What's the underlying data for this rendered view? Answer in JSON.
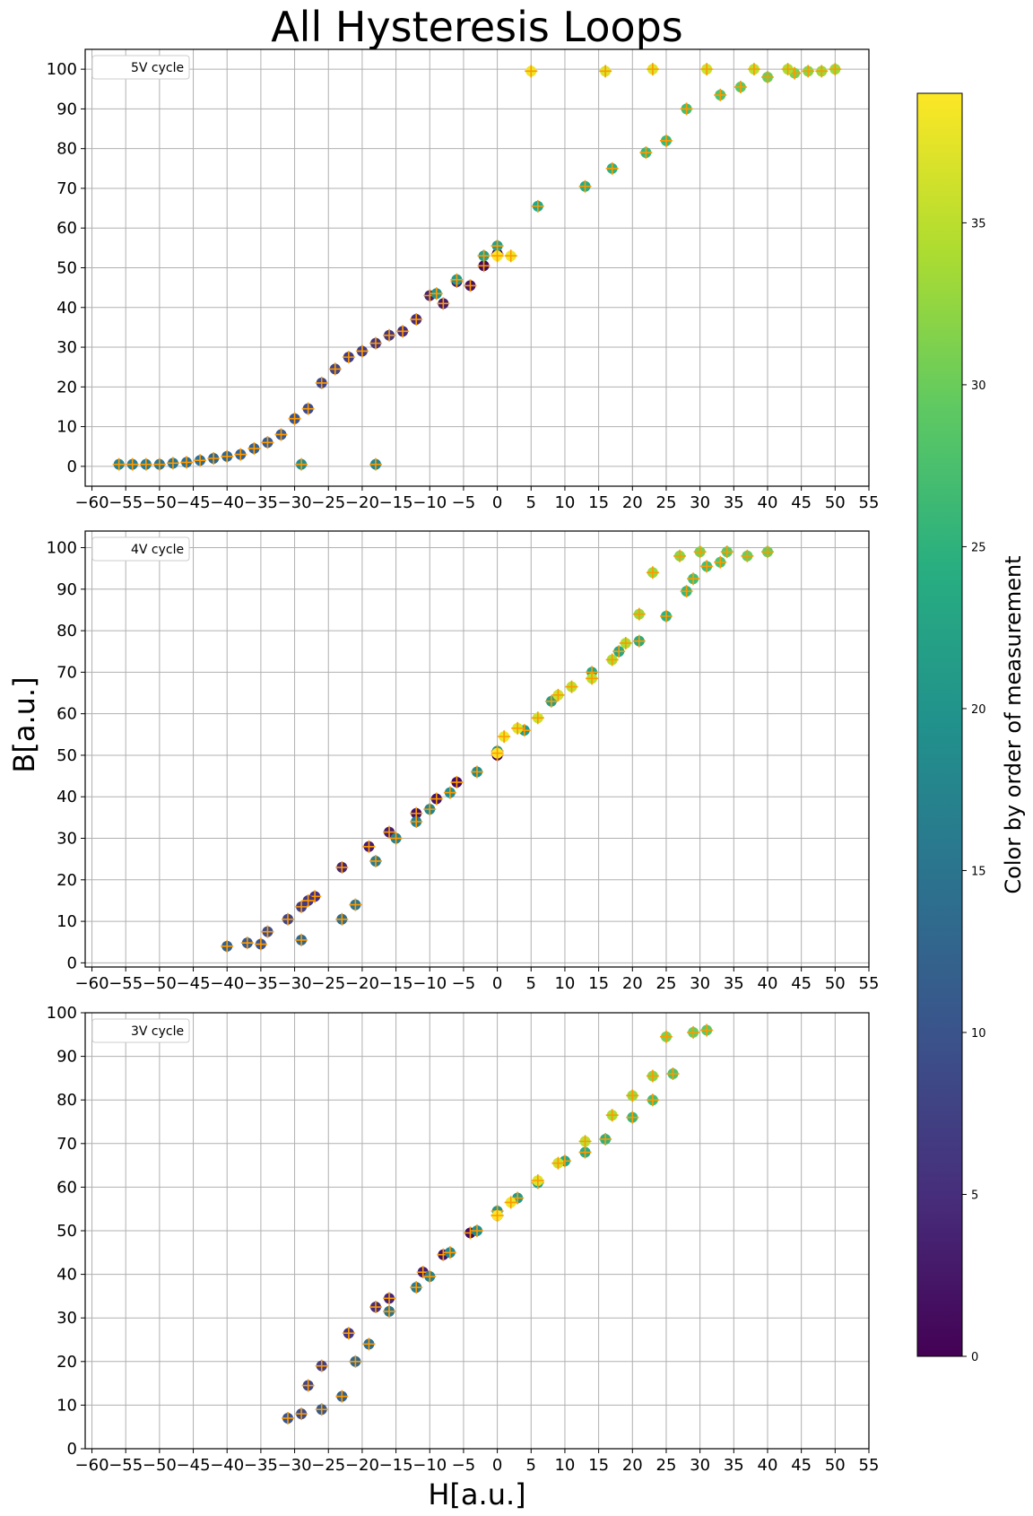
{
  "figure": {
    "title": "All Hysteresis Loops",
    "xlabel": "H[a.u.]",
    "ylabel": "B[a.u.]"
  },
  "colorbar": {
    "label": "Color by order of measurement",
    "min": 0,
    "max": 39,
    "ticks": [
      0,
      5,
      10,
      15,
      20,
      25,
      30,
      35
    ],
    "colormap": "viridis"
  },
  "chart_data": [
    {
      "type": "scatter",
      "legend": "5V cycle",
      "legend_position": "top-left",
      "grid": true,
      "xlim": [
        -61,
        55
      ],
      "ylim": [
        -5,
        105
      ],
      "xticks": [
        -60,
        -55,
        -50,
        -45,
        -40,
        -35,
        -30,
        -25,
        -20,
        -15,
        -10,
        -5,
        0,
        5,
        10,
        15,
        20,
        25,
        30,
        35,
        40,
        45,
        50,
        55
      ],
      "yticks": [
        0,
        10,
        20,
        30,
        40,
        50,
        60,
        70,
        80,
        90,
        100
      ],
      "x": [
        0,
        -2,
        -4,
        -6,
        -8,
        -10,
        -12,
        -14,
        -16,
        -18,
        -20,
        -22,
        -24,
        -26,
        -28,
        -30,
        -32,
        -34,
        -36,
        -38,
        -40,
        -42,
        -44,
        -46,
        -48,
        -50,
        -52,
        -54,
        -56,
        -18,
        -29,
        -9,
        -6,
        -2,
        0,
        6,
        13,
        17,
        22,
        25,
        28,
        33,
        36,
        40,
        44,
        46,
        48,
        50,
        43,
        38,
        31,
        23,
        16,
        5,
        2,
        0
      ],
      "y": [
        53.5,
        50.5,
        45.5,
        46.5,
        41,
        43,
        37,
        34,
        33,
        31,
        29,
        27.5,
        24.5,
        21,
        14.5,
        12,
        8,
        6,
        4.5,
        3,
        2.5,
        2,
        1.5,
        1,
        0.8,
        0.5,
        0.5,
        0.5,
        0.5,
        0.5,
        0.5,
        43.5,
        47,
        53,
        55.5,
        65.5,
        70.5,
        75,
        79,
        82,
        90,
        93.5,
        95.5,
        98,
        99,
        99.5,
        99.5,
        100,
        100,
        100,
        100,
        100,
        99.5,
        99.5,
        53,
        53
      ],
      "order": [
        0,
        1,
        2,
        3,
        3,
        4,
        5,
        5,
        6,
        6,
        7,
        7,
        8,
        8,
        9,
        10,
        11,
        11,
        12,
        12,
        13,
        13,
        14,
        14,
        15,
        15,
        16,
        16,
        17,
        18,
        19,
        20,
        21,
        22,
        22,
        23,
        24,
        25,
        26,
        26,
        27,
        28,
        29,
        30,
        31,
        32,
        33,
        33,
        34,
        35,
        36,
        37,
        37,
        38,
        38,
        39
      ]
    },
    {
      "type": "scatter",
      "legend": "4V cycle",
      "legend_position": "top-left",
      "grid": true,
      "xlim": [
        -61,
        55
      ],
      "ylim": [
        -1,
        104
      ],
      "xticks": [
        -60,
        -55,
        -50,
        -45,
        -40,
        -35,
        -30,
        -25,
        -20,
        -15,
        -10,
        -5,
        0,
        5,
        10,
        15,
        20,
        25,
        30,
        35,
        40,
        45,
        50,
        55
      ],
      "yticks": [
        0,
        10,
        20,
        30,
        40,
        50,
        60,
        70,
        80,
        90,
        100
      ],
      "x": [
        0,
        -6,
        -9,
        -12,
        -16,
        -19,
        -23,
        -27,
        -28,
        -29,
        -31,
        -34,
        -35,
        -37,
        -40,
        -29,
        -23,
        -21,
        -18,
        -15,
        -12,
        -10,
        -7,
        -3,
        0,
        4,
        8,
        14,
        18,
        21,
        25,
        28,
        29,
        31,
        33,
        34,
        37,
        40,
        30,
        27,
        23,
        21,
        19,
        17,
        14,
        11,
        9,
        6,
        3,
        1,
        0
      ],
      "y": [
        50,
        43.5,
        39.5,
        36,
        31.5,
        28,
        23,
        16,
        15,
        13.5,
        10.5,
        7.5,
        4.5,
        4.8,
        4,
        5.5,
        10.5,
        14,
        24.5,
        30,
        34,
        37,
        41,
        46,
        51,
        56,
        63,
        70,
        75,
        77.5,
        83.5,
        89.5,
        92.5,
        95.5,
        96.5,
        99,
        98,
        99,
        99,
        98,
        94,
        84,
        77,
        73,
        68.5,
        66.5,
        64.5,
        59,
        56.5,
        54.5,
        50.5
      ],
      "order": [
        0,
        1,
        2,
        2,
        3,
        3,
        4,
        5,
        6,
        7,
        8,
        9,
        10,
        11,
        12,
        13,
        14,
        15,
        16,
        17,
        17,
        18,
        19,
        19,
        20,
        21,
        22,
        23,
        23,
        24,
        25,
        26,
        27,
        27,
        28,
        29,
        30,
        30,
        31,
        32,
        33,
        33,
        34,
        34,
        35,
        35,
        36,
        36,
        37,
        38,
        39
      ]
    },
    {
      "type": "scatter",
      "legend": "3V cycle",
      "legend_position": "top-left",
      "grid": true,
      "xlim": [
        -61,
        55
      ],
      "ylim": [
        0,
        100
      ],
      "xticks": [
        -60,
        -55,
        -50,
        -45,
        -40,
        -35,
        -30,
        -25,
        -20,
        -15,
        -10,
        -5,
        0,
        5,
        10,
        15,
        20,
        25,
        30,
        35,
        40,
        45,
        50,
        55
      ],
      "yticks": [
        0,
        10,
        20,
        30,
        40,
        50,
        60,
        70,
        80,
        90,
        100
      ],
      "x": [
        0,
        -4,
        -8,
        -11,
        -16,
        -18,
        -22,
        -26,
        -28,
        -29,
        -31,
        -26,
        -23,
        -21,
        -19,
        -16,
        -12,
        -10,
        -7,
        -3,
        0,
        3,
        6,
        10,
        13,
        16,
        20,
        23,
        26,
        31,
        29,
        25,
        23,
        20,
        17,
        13,
        9,
        6,
        2,
        0
      ],
      "y": [
        53.5,
        49.5,
        44.5,
        40.5,
        34.5,
        32.5,
        26.5,
        19,
        14.5,
        8,
        7,
        9,
        12,
        20,
        24,
        31.5,
        37,
        39.5,
        45,
        50,
        54.5,
        57.5,
        61,
        66,
        68,
        71,
        76,
        80,
        86,
        96,
        95.5,
        94.5,
        85.5,
        81,
        76.5,
        70.5,
        65.5,
        61.5,
        56.5,
        53.5
      ],
      "order": [
        0,
        1,
        2,
        3,
        4,
        5,
        6,
        7,
        8,
        9,
        10,
        11,
        12,
        13,
        14,
        15,
        16,
        17,
        18,
        19,
        20,
        21,
        22,
        23,
        24,
        25,
        26,
        27,
        28,
        29,
        30,
        31,
        32,
        33,
        34,
        35,
        36,
        37,
        38,
        39
      ]
    }
  ]
}
